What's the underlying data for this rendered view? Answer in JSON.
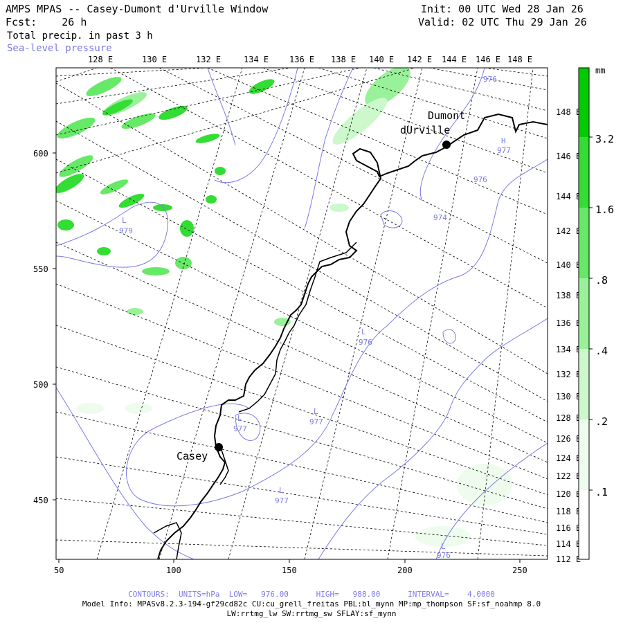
{
  "header": {
    "title": "AMPS MPAS -- Casey-Dumont d'Urville Window",
    "fcst": "Fcst:    26 h",
    "init": "Init: 00 UTC Wed 28 Jan 26",
    "valid": "Valid: 02 UTC Thu 29 Jan 26",
    "field1": "Total precip. in past 3 h",
    "field2": "Sea-level pressure"
  },
  "top_axis": [
    "128 E",
    "130 E",
    "132 E",
    "134 E",
    "136 E",
    "138 E",
    "140 E",
    "142 E",
    "144 E",
    "146 E",
    "148 E"
  ],
  "right_axis": [
    "148 E",
    "146 E",
    "144 E",
    "142 E",
    "140 E",
    "138 E",
    "136 E",
    "134 E",
    "132 E",
    "130 E",
    "128 E",
    "126 E",
    "124 E",
    "122 E",
    "120 E",
    "118 E",
    "116 E",
    "114 E",
    "112 E"
  ],
  "left_axis": [
    "600",
    "550",
    "500",
    "450"
  ],
  "bottom_axis": [
    "50",
    "100",
    "150",
    "200",
    "250"
  ],
  "colorbar": {
    "unit": "mm",
    "labels": [
      "3.2",
      "1.6",
      ".8",
      ".4",
      ".2",
      ".1"
    ],
    "colors": [
      "#00cc00",
      "#33dd33",
      "#66e966",
      "#99f199",
      "#ccf8cc",
      "#edfced"
    ]
  },
  "places": {
    "north": [
      "Dumont",
      "dUrville"
    ],
    "south": "Casey"
  },
  "pressure_labels": [
    {
      "letter": "L",
      "value": "979"
    },
    {
      "letter": "L",
      "value": "976"
    },
    {
      "letter": "L",
      "value": "977"
    },
    {
      "letter": "L",
      "value": "977"
    },
    {
      "letter": "L",
      "value": "977"
    },
    {
      "letter": "H",
      "value": "977"
    },
    {
      "letter": "",
      "value": "976"
    },
    {
      "letter": "",
      "value": "974"
    },
    {
      "letter": "",
      "value": "976"
    },
    {
      "letter": "L",
      "value": "976"
    }
  ],
  "footer": {
    "contours": "CONTOURS:  UNITS=hPa  LOW=   976.00      HIGH=   988.00      INTERVAL=    4.0000",
    "model": "Model Info: MPASv8.2.3-194-gf29cd82c CU:cu_grell_freitas PBL:bl_mynn MP:mp_thompson SF:sf_noahmp 8.0",
    "model2": "LW:rrtmg_lw SW:rrtmg_sw SFLAY:sf_mynn"
  },
  "colors": {
    "contour": "#7a7ae6",
    "coast": "#000000",
    "grid": "#000000"
  }
}
